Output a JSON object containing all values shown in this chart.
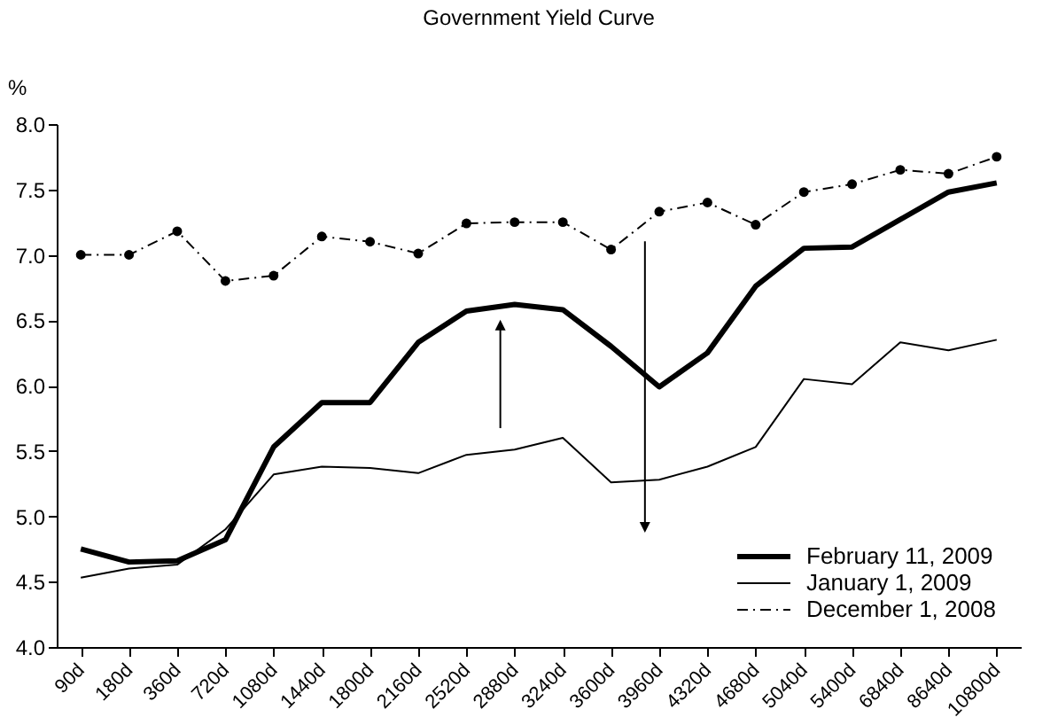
{
  "chart_data": {
    "type": "line",
    "title": "Government Yield Curve",
    "ylabel": "%",
    "categories": [
      "90d",
      "180d",
      "360d",
      "720d",
      "1080d",
      "1440d",
      "1800d",
      "2160d",
      "2520d",
      "2880d",
      "3240d",
      "3600d",
      "3960d",
      "4320d",
      "4680d",
      "5040d",
      "5400d",
      "6840d",
      "8640d",
      "10800d"
    ],
    "series": [
      {
        "name": "February 11, 2009",
        "color": "#000000",
        "line_style": "solid",
        "marker": "none",
        "values": [
          4.75,
          4.65,
          4.66,
          4.82,
          5.53,
          5.87,
          5.87,
          6.33,
          6.57,
          6.62,
          6.58,
          6.3,
          5.99,
          6.25,
          6.76,
          7.05,
          7.06,
          7.27,
          7.48,
          7.55
        ]
      },
      {
        "name": "January 1, 2009",
        "color": "#000000",
        "line_style": "solid",
        "marker": "none",
        "values": [
          4.53,
          4.6,
          4.63,
          4.9,
          5.32,
          5.38,
          5.37,
          5.33,
          5.47,
          5.51,
          5.6,
          5.26,
          5.28,
          5.38,
          5.53,
          6.05,
          6.01,
          6.33,
          6.27,
          6.35
        ]
      },
      {
        "name": "December 1, 2008",
        "color": "#000000",
        "line_style": "dashed",
        "marker": "circle",
        "values": [
          7.0,
          7.0,
          7.18,
          6.8,
          6.84,
          7.14,
          7.1,
          7.01,
          7.24,
          7.25,
          7.25,
          7.04,
          7.33,
          7.4,
          7.23,
          7.48,
          7.54,
          7.65,
          7.62,
          7.75
        ]
      }
    ],
    "ylim": [
      4.0,
      8.0
    ],
    "yticks": [
      {
        "value": 4.0,
        "label": "4.0"
      },
      {
        "value": 4.5,
        "label": "4.5"
      },
      {
        "value": 5.0,
        "label": "5.0"
      },
      {
        "value": 5.5,
        "label": "5.5"
      },
      {
        "value": 6.0,
        "label": "6.0"
      },
      {
        "value": 6.5,
        "label": "6.5"
      },
      {
        "value": 7.0,
        "label": "7.0"
      },
      {
        "value": 7.5,
        "label": "7.5"
      },
      {
        "value": 8.0,
        "label": "8.0"
      }
    ],
    "grid": false,
    "legend": "bottom right"
  }
}
